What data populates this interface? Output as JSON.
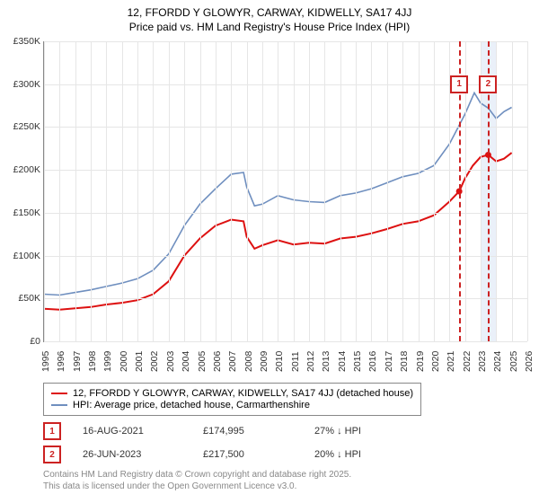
{
  "title_line1": "12, FFORDD Y GLOWYR, CARWAY, KIDWELLY, SA17 4JJ",
  "title_line2": "Price paid vs. HM Land Registry's House Price Index (HPI)",
  "chart": {
    "type": "line",
    "background_color": "#ffffff",
    "grid_color": "#e6e6e6",
    "axis_color": "#888888",
    "xlim": [
      1995,
      2026
    ],
    "ylim": [
      0,
      350000
    ],
    "ytick_step": 50000,
    "xtick_step": 1,
    "ytick_prefix": "£",
    "ytick_suffix": "K",
    "ytick_divisor": 1000,
    "x_tick_rotation": -90,
    "label_fontsize": 10.5,
    "highlight_band": {
      "from": 2023,
      "to": 2024,
      "color": "#e1e9f7"
    },
    "markers": [
      {
        "id": "1",
        "x": 2021.63,
        "label_y": 300000,
        "line_color": "#cc2222",
        "dash": true
      },
      {
        "id": "2",
        "x": 2023.49,
        "label_y": 300000,
        "line_color": "#cc2222",
        "dash": true
      }
    ],
    "series": [
      {
        "name": "property",
        "label": "12, FFORDD Y GLOWYR, CARWAY, KIDWELLY, SA17 4JJ (detached house)",
        "color": "#dd1111",
        "width": 2,
        "points": [
          [
            1995,
            38000
          ],
          [
            1996,
            37000
          ],
          [
            1997,
            38500
          ],
          [
            1998,
            40000
          ],
          [
            1999,
            43000
          ],
          [
            2000,
            45000
          ],
          [
            2001,
            48000
          ],
          [
            2002,
            55000
          ],
          [
            2003,
            70000
          ],
          [
            2004,
            100000
          ],
          [
            2005,
            120000
          ],
          [
            2006,
            135000
          ],
          [
            2007,
            142000
          ],
          [
            2007.8,
            140000
          ],
          [
            2008,
            122000
          ],
          [
            2008.5,
            108000
          ],
          [
            2009,
            112000
          ],
          [
            2010,
            118000
          ],
          [
            2011,
            113000
          ],
          [
            2012,
            115000
          ],
          [
            2013,
            114000
          ],
          [
            2014,
            120000
          ],
          [
            2015,
            122000
          ],
          [
            2016,
            126000
          ],
          [
            2017,
            131000
          ],
          [
            2018,
            137000
          ],
          [
            2019,
            140000
          ],
          [
            2020,
            147000
          ],
          [
            2021,
            163000
          ],
          [
            2021.63,
            174995
          ],
          [
            2022,
            190000
          ],
          [
            2022.5,
            205000
          ],
          [
            2023,
            215000
          ],
          [
            2023.49,
            217500
          ],
          [
            2024,
            210000
          ],
          [
            2024.5,
            213000
          ],
          [
            2025,
            220000
          ]
        ]
      },
      {
        "name": "hpi",
        "label": "HPI: Average price, detached house, Carmarthenshire",
        "color": "#6f8fbf",
        "width": 1.6,
        "points": [
          [
            1995,
            55000
          ],
          [
            1996,
            54000
          ],
          [
            1997,
            57000
          ],
          [
            1998,
            60000
          ],
          [
            1999,
            64000
          ],
          [
            2000,
            68000
          ],
          [
            2001,
            73000
          ],
          [
            2002,
            83000
          ],
          [
            2003,
            102000
          ],
          [
            2004,
            135000
          ],
          [
            2005,
            160000
          ],
          [
            2006,
            178000
          ],
          [
            2007,
            195000
          ],
          [
            2007.8,
            197000
          ],
          [
            2008,
            180000
          ],
          [
            2008.5,
            158000
          ],
          [
            2009,
            160000
          ],
          [
            2010,
            170000
          ],
          [
            2011,
            165000
          ],
          [
            2012,
            163000
          ],
          [
            2013,
            162000
          ],
          [
            2014,
            170000
          ],
          [
            2015,
            173000
          ],
          [
            2016,
            178000
          ],
          [
            2017,
            185000
          ],
          [
            2018,
            192000
          ],
          [
            2019,
            196000
          ],
          [
            2020,
            205000
          ],
          [
            2021,
            230000
          ],
          [
            2022,
            265000
          ],
          [
            2022.6,
            290000
          ],
          [
            2023,
            278000
          ],
          [
            2023.5,
            272000
          ],
          [
            2024,
            260000
          ],
          [
            2024.5,
            268000
          ],
          [
            2025,
            273000
          ]
        ]
      }
    ]
  },
  "legend": {
    "border_color": "#888888",
    "fontsize": 11
  },
  "annotations": [
    {
      "id": "1",
      "date": "16-AUG-2021",
      "price": "£174,995",
      "delta": "27% ↓ HPI"
    },
    {
      "id": "2",
      "date": "26-JUN-2023",
      "price": "£217,500",
      "delta": "20% ↓ HPI"
    }
  ],
  "footer": {
    "line1": "Contains HM Land Registry data © Crown copyright and database right 2025.",
    "line2": "This data is licensed under the Open Government Licence v3.0.",
    "color": "#888888",
    "fontsize": 10
  }
}
